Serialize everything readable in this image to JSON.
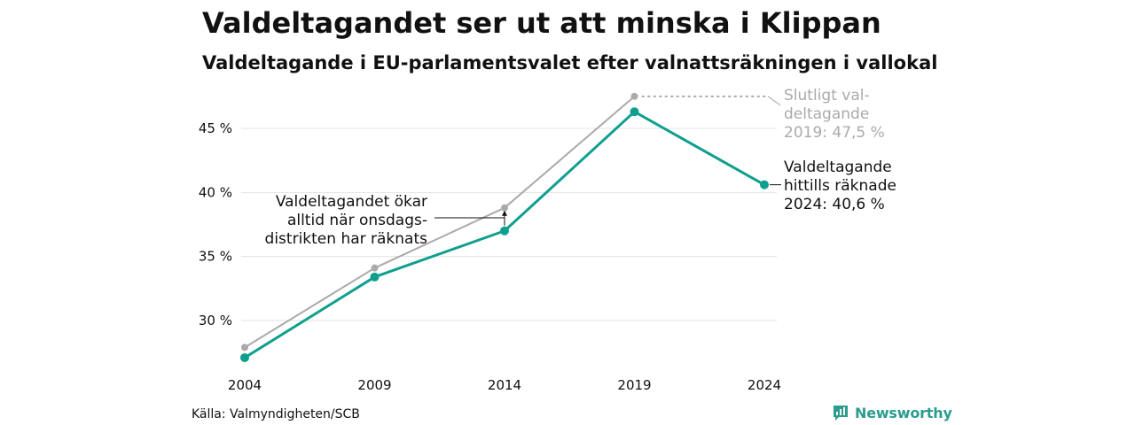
{
  "colors": {
    "primary": "#0e9f8e",
    "secondary": "#aaaaaa",
    "brand": "#2a9d8f",
    "grid": "#e3e3e3"
  },
  "source": "Källa: Valmyndigheten/SCB",
  "brand": {
    "name": "Newsworthy",
    "icon": "bar-chart-icon"
  },
  "chart_data": {
    "type": "line",
    "title": "Valdeltagandet ser ut att minska i Klippan",
    "subtitle": "Valdeltagande i EU-parlamentsvalet efter valnattsräkningen i vallokal",
    "xlabel": "",
    "ylabel": "",
    "x": [
      "2004",
      "2009",
      "2014",
      "2019",
      "2024"
    ],
    "ylim": [
      25.5,
      48.5
    ],
    "yticks": [
      30,
      35,
      40,
      45
    ],
    "ytick_labels": [
      "30 %",
      "35 %",
      "40 %",
      "45 %"
    ],
    "grid": true,
    "series": [
      {
        "key": "final",
        "values": [
          27.9,
          34.1,
          38.8,
          47.5,
          null
        ]
      },
      {
        "key": "election-night",
        "values": [
          27.1,
          33.4,
          37.0,
          46.3,
          40.6
        ]
      }
    ],
    "annotations": {
      "final": [
        "Slutligt val-",
        "deltagande",
        "2019: 47,5 %"
      ],
      "current": [
        "Valdeltagande",
        "hittills räknade",
        "2024: 40,6 %"
      ],
      "note": [
        "Valdeltagandet ökar",
        "alltid när onsdags-",
        "distrikten har räknats"
      ]
    }
  }
}
